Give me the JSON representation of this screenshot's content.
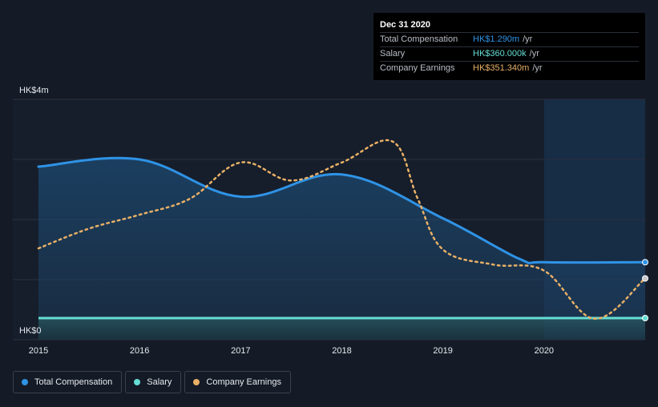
{
  "colors": {
    "background": "#151b26",
    "total_compensation": "#2f93e6",
    "salary": "#65ddd4",
    "company_earnings": "#e9b066",
    "grid": "#2a3140"
  },
  "tooltip": {
    "date": "Dec 31 2020",
    "rows": [
      {
        "label": "Total Compensation",
        "value": "HK$1.290m",
        "unit": "/yr",
        "color": "#2f93e6"
      },
      {
        "label": "Salary",
        "value": "HK$360.000k",
        "unit": "/yr",
        "color": "#65ddd4"
      },
      {
        "label": "Company Earnings",
        "value": "HK$351.340m",
        "unit": "/yr",
        "color": "#e9b066"
      }
    ]
  },
  "legend": {
    "items": [
      {
        "label": "Total Compensation",
        "color": "#2f93e6"
      },
      {
        "label": "Salary",
        "color": "#65ddd4"
      },
      {
        "label": "Company Earnings",
        "color": "#e9b066"
      }
    ]
  },
  "chart_data": {
    "type": "line",
    "title": "",
    "xlabel": "",
    "ylabel": "",
    "y_top_label": "HK$4m",
    "y_bottom_label": "HK$0",
    "ylim": [
      0,
      4
    ],
    "xlim": [
      2015.0,
      2021.0
    ],
    "x_ticks": [
      2015,
      2016,
      2017,
      2018,
      2019,
      2020
    ],
    "x_tick_labels": [
      "2015",
      "2016",
      "2017",
      "2018",
      "2019",
      "2020"
    ],
    "highlight_range": [
      2020.0,
      2021.0
    ],
    "series": [
      {
        "name": "Total Compensation",
        "unit": "HK$m",
        "x": [
          2015.0,
          2016.0,
          2017.0,
          2018.0,
          2019.0,
          2019.75,
          2020.0,
          2021.0
        ],
        "y": [
          2.88,
          3.0,
          2.38,
          2.75,
          2.02,
          1.35,
          1.29,
          1.29
        ]
      },
      {
        "name": "Salary",
        "unit": "HK$m",
        "x": [
          2015.0,
          2021.0
        ],
        "y": [
          0.36,
          0.36
        ]
      },
      {
        "name": "Company Earnings",
        "unit": "scaled to compensation axis",
        "x": [
          2015.0,
          2015.5,
          2016.0,
          2016.5,
          2017.0,
          2017.5,
          2018.0,
          2018.5,
          2018.75,
          2019.0,
          2019.5,
          2020.0,
          2020.5,
          2021.0
        ],
        "y": [
          1.52,
          1.85,
          2.08,
          2.35,
          2.95,
          2.65,
          2.95,
          3.3,
          2.35,
          1.5,
          1.25,
          1.15,
          0.35,
          1.02
        ]
      }
    ]
  }
}
